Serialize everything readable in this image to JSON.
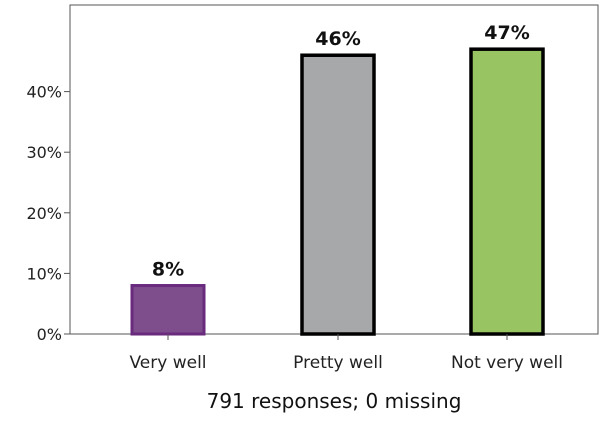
{
  "chart_data": {
    "type": "bar",
    "categories": [
      "Very well",
      "Pretty well",
      "Not very well"
    ],
    "values": [
      8,
      46,
      47
    ],
    "data_labels": [
      "8%",
      "46%",
      "47%"
    ],
    "colors": [
      "#7e4d8c",
      "#a7a8aa",
      "#99c462"
    ],
    "stroke_colors": [
      "#6a2a7e",
      "#000000",
      "#000000"
    ],
    "ylim": [
      0,
      52
    ],
    "yticks": [
      0,
      10,
      20,
      30,
      40
    ],
    "ytick_labels": [
      "0%",
      "10%",
      "20%",
      "30%",
      "40%"
    ],
    "grid": false,
    "caption": "791 responses; 0 missing"
  }
}
